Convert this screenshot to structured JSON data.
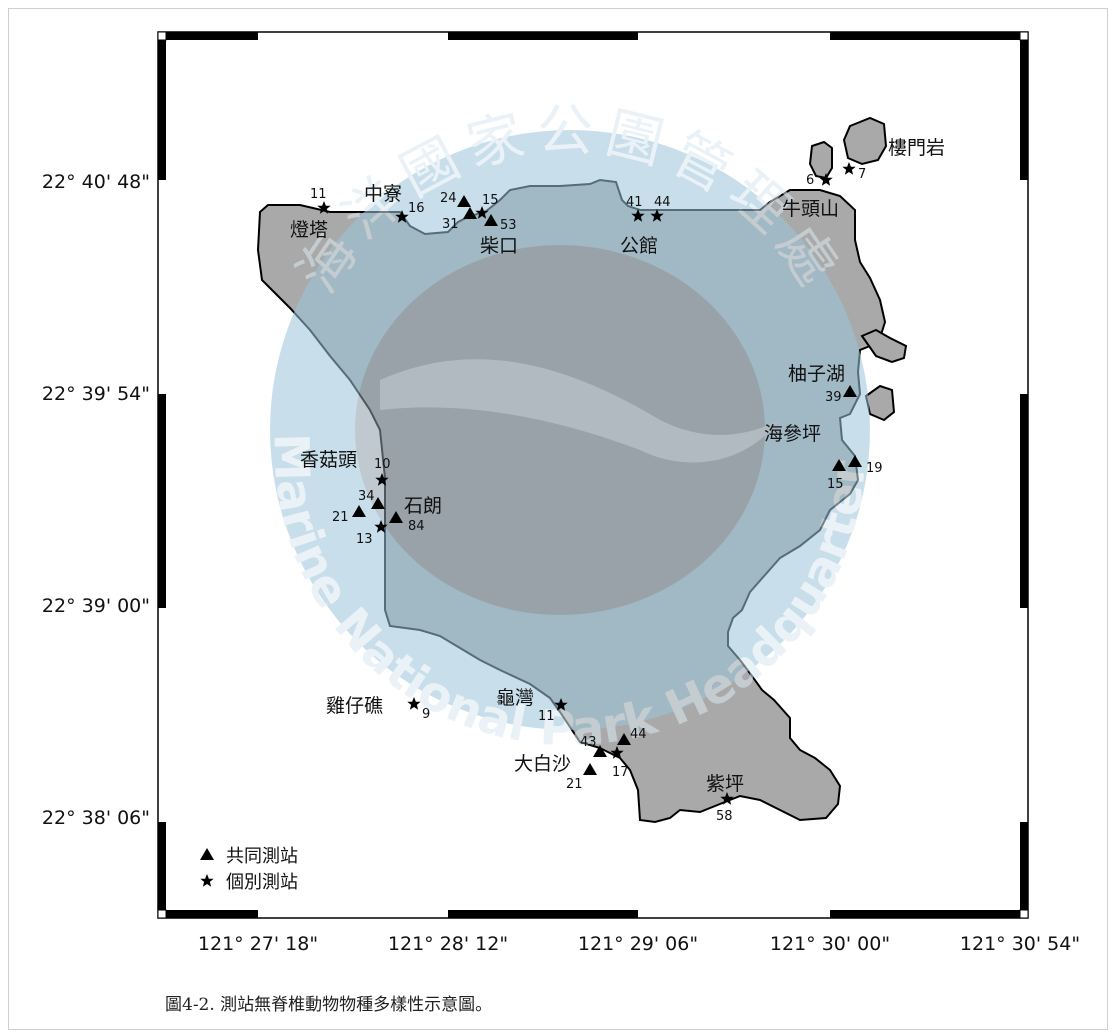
{
  "caption": "圖4-2. 測站無脊椎動物物種多樣性示意圖。",
  "watermark": {
    "chinese": "海洋國家公園管理處",
    "english": "Marine National Park Headquarters"
  },
  "colors": {
    "island": "#a9a9a9",
    "watermark_ring": "#9cc6dc",
    "watermark_inner": "#8e9eaa",
    "border": "#000000"
  },
  "axes": {
    "lat_ticks": [
      "22° 40' 48\"",
      "22° 39' 54\"",
      "22° 39' 00\"",
      "22° 38' 06\""
    ],
    "lon_ticks": [
      "121° 27' 18\"",
      "121° 28' 12\"",
      "121° 29' 06\"",
      "121° 30' 00\"",
      "121° 30' 54\""
    ]
  },
  "legend": {
    "common": "共同測站",
    "individual": "個別測站"
  },
  "places": {
    "loumenyan": "樓門岩",
    "niutoushan": "牛頭山",
    "dengta": "燈塔",
    "zhongliao": "中寮",
    "chaikou": "柴口",
    "gongguan": "公館",
    "youzihu": "柚子湖",
    "haishenping": "海參坪",
    "xiangutou": "香菇頭",
    "shilang": "石朗",
    "jizaijiao": "雞仔礁",
    "guiwan": "龜灣",
    "dabaisha": "大白沙",
    "ziping": "紫坪"
  },
  "stations": [
    {
      "type": "individual",
      "label": "11"
    },
    {
      "type": "individual",
      "label": "16"
    },
    {
      "type": "common",
      "label": "24"
    },
    {
      "type": "common",
      "label": "31"
    },
    {
      "type": "individual",
      "label": "15"
    },
    {
      "type": "common",
      "label": "53"
    },
    {
      "type": "individual",
      "label": "41"
    },
    {
      "type": "individual",
      "label": "44"
    },
    {
      "type": "individual",
      "label": "6"
    },
    {
      "type": "individual",
      "label": "7"
    },
    {
      "type": "common",
      "label": "39"
    },
    {
      "type": "common",
      "label": "15"
    },
    {
      "type": "common",
      "label": "19"
    },
    {
      "type": "individual",
      "label": "10"
    },
    {
      "type": "common",
      "label": "34"
    },
    {
      "type": "common",
      "label": "21"
    },
    {
      "type": "common",
      "label": "84"
    },
    {
      "type": "individual",
      "label": "13"
    },
    {
      "type": "individual",
      "label": "9"
    },
    {
      "type": "individual",
      "label": "11"
    },
    {
      "type": "common",
      "label": "43"
    },
    {
      "type": "common",
      "label": "44"
    },
    {
      "type": "common",
      "label": "21"
    },
    {
      "type": "individual",
      "label": "17"
    },
    {
      "type": "individual",
      "label": "58"
    }
  ]
}
